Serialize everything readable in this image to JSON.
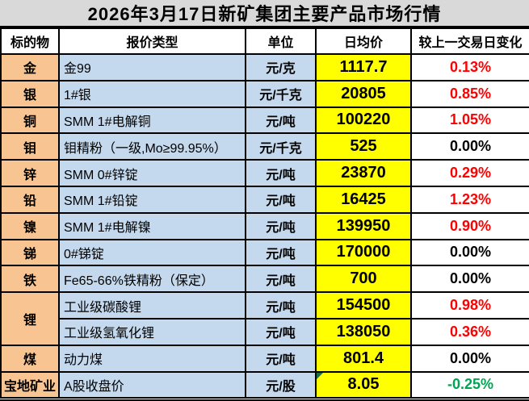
{
  "title": "2026年3月17日新矿集团主要产品市场行情",
  "colors": {
    "title_bg": "#D9D9D9",
    "subject_bg": "#F8C592",
    "type_unit_bg": "#C4D9ED",
    "price_bg": "#FFFF00",
    "change_up": "#FF0000",
    "change_zero": "#000000",
    "change_down": "#00A551",
    "cell_flag": "#1E7145",
    "border": "#000000"
  },
  "table": {
    "headers": {
      "subject": "标的物",
      "type": "报价类型",
      "unit": "单位",
      "price": "日均价",
      "change": "较上一交易日变化"
    },
    "rows": [
      {
        "subject": "金",
        "type": "金99",
        "unit": "元/克",
        "price": "1117.7",
        "change": "0.13%",
        "trend": "up"
      },
      {
        "subject": "银",
        "type": "1#银",
        "unit": "元/千克",
        "price": "20805",
        "change": "0.85%",
        "trend": "up"
      },
      {
        "subject": "铜",
        "type": "SMM 1#电解铜",
        "unit": "元/吨",
        "price": "100220",
        "change": "1.05%",
        "trend": "up"
      },
      {
        "subject": "钼",
        "type": "钼精粉（一级,Mo≥99.95%）",
        "unit": "元/千克",
        "price": "525",
        "change": "0.00%",
        "trend": "zero"
      },
      {
        "subject": "锌",
        "type": "SMM 0#锌锭",
        "unit": "元/吨",
        "price": "23870",
        "change": "0.29%",
        "trend": "up"
      },
      {
        "subject": "铅",
        "type": "SMM 1#铅锭",
        "unit": "元/吨",
        "price": "16425",
        "change": "1.23%",
        "trend": "up"
      },
      {
        "subject": "镍",
        "type": "SMM 1#电解镍",
        "unit": "元/吨",
        "price": "139950",
        "change": "0.90%",
        "trend": "up"
      },
      {
        "subject": "锑",
        "type": "0#锑锭",
        "unit": "元/吨",
        "price": "170000",
        "change": "0.00%",
        "trend": "zero"
      },
      {
        "subject": "铁",
        "type": "Fe65-66%铁精粉（保定）",
        "unit": "元/吨",
        "price": "700",
        "change": "0.00%",
        "trend": "zero"
      },
      {
        "subject": "锂",
        "type": "工业级碳酸锂",
        "unit": "元/吨",
        "price": "154500",
        "change": "0.98%",
        "trend": "up",
        "subject_rowspan": 2
      },
      {
        "subject": null,
        "type": "工业级氢氧化锂",
        "unit": "元/吨",
        "price": "138050",
        "change": "0.36%",
        "trend": "up"
      },
      {
        "subject": "煤",
        "type": "动力煤",
        "unit": "元/吨",
        "price": "801.4",
        "change": "0.00%",
        "trend": "zero"
      },
      {
        "subject": "宝地矿业",
        "type": "A股收盘价",
        "unit": "元/股",
        "price": "8.05",
        "change": "-0.25%",
        "trend": "down",
        "price_flag": true
      }
    ]
  }
}
